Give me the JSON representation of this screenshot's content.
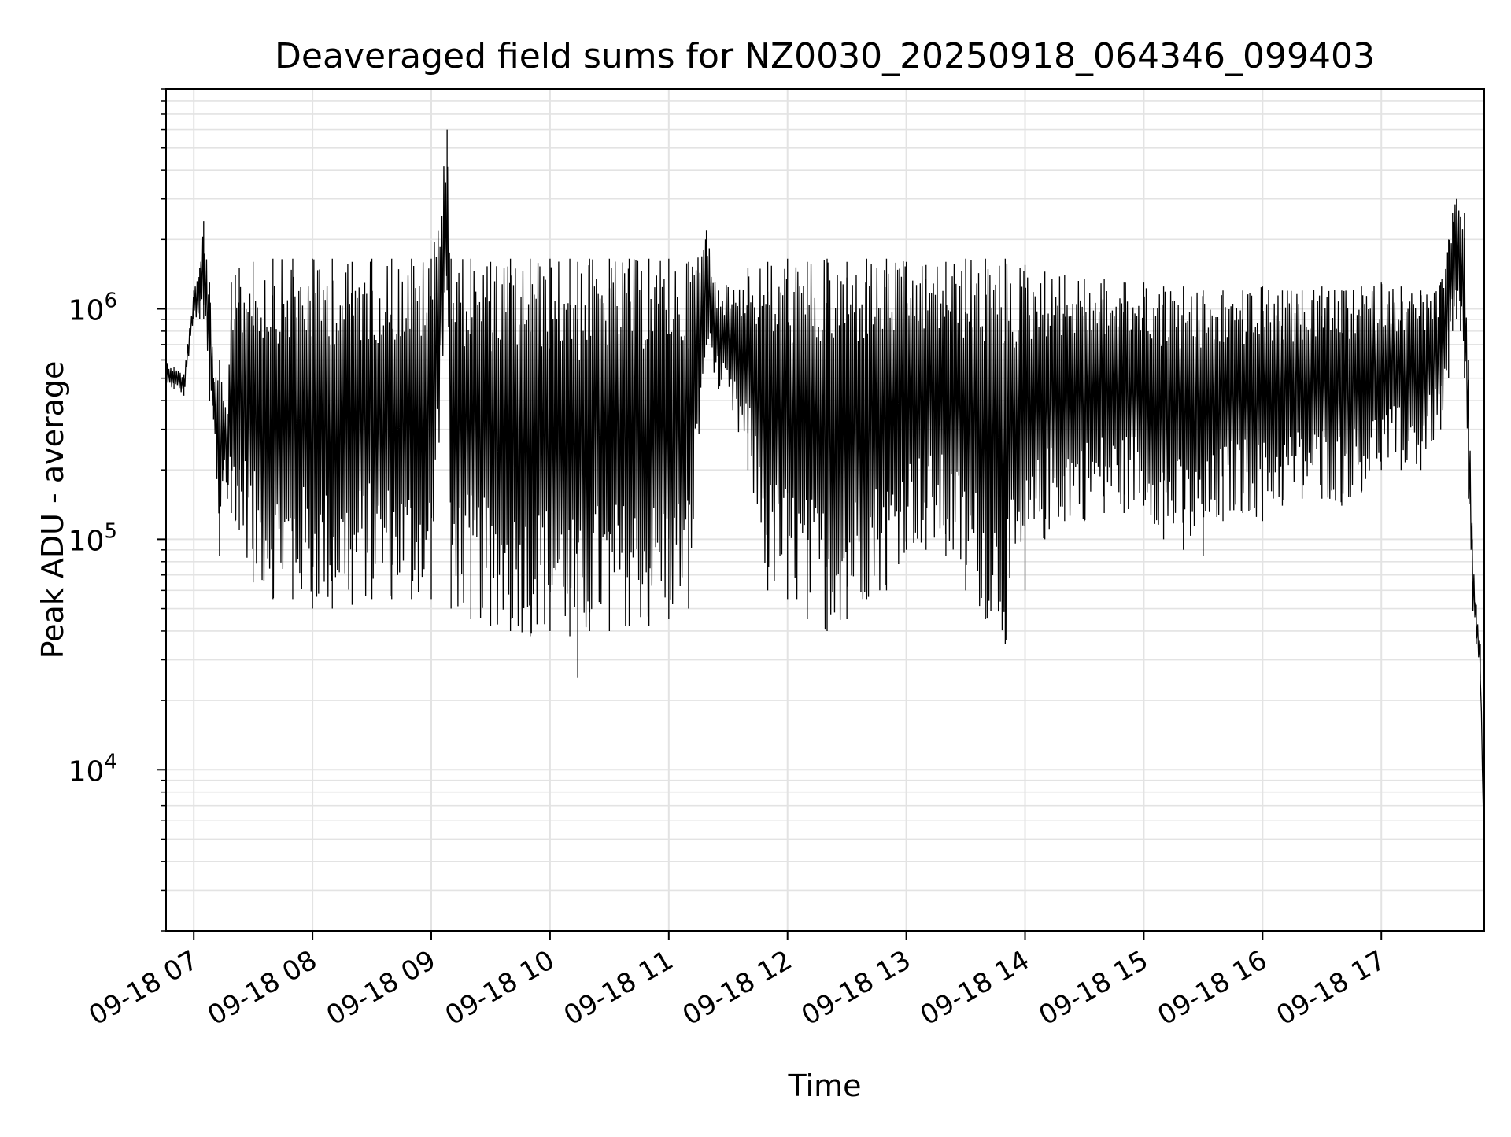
{
  "chart_data": {
    "type": "line",
    "title": "Deaveraged field sums for NZ0030_20250918_064346_099403",
    "xlabel": "Time",
    "ylabel": "Peak ADU - average",
    "y_scale": "log",
    "ylim": [
      2000,
      9000000
    ],
    "xlim": [
      "2025-09-18 06:46",
      "2025-09-18 17:52"
    ],
    "x_ticks": [
      {
        "value": "2025-09-18 07:00",
        "label": "09-18 07"
      },
      {
        "value": "2025-09-18 08:00",
        "label": "09-18 08"
      },
      {
        "value": "2025-09-18 09:00",
        "label": "09-18 09"
      },
      {
        "value": "2025-09-18 10:00",
        "label": "09-18 10"
      },
      {
        "value": "2025-09-18 11:00",
        "label": "09-18 11"
      },
      {
        "value": "2025-09-18 12:00",
        "label": "09-18 12"
      },
      {
        "value": "2025-09-18 13:00",
        "label": "09-18 13"
      },
      {
        "value": "2025-09-18 14:00",
        "label": "09-18 14"
      },
      {
        "value": "2025-09-18 15:00",
        "label": "09-18 15"
      },
      {
        "value": "2025-09-18 16:00",
        "label": "09-18 16"
      },
      {
        "value": "2025-09-18 17:00",
        "label": "09-18 17"
      }
    ],
    "y_ticks": [
      {
        "value": 10000,
        "base": "10",
        "exp": "4"
      },
      {
        "value": 100000,
        "base": "10",
        "exp": "5"
      },
      {
        "value": 1000000,
        "base": "10",
        "exp": "6"
      }
    ],
    "grid": true,
    "line_color": "#000000",
    "series": [
      {
        "x": [
          "2025-09-18 06:46",
          "2025-09-18 06:50",
          "2025-09-18 06:55",
          "2025-09-18 07:00",
          "2025-09-18 07:03",
          "2025-09-18 07:05",
          "2025-09-18 07:08",
          "2025-09-18 07:10",
          "2025-09-18 07:13",
          "2025-09-18 07:15",
          "2025-09-18 07:17",
          "2025-09-18 07:19",
          "2025-09-18 07:21",
          "2025-09-18 07:23",
          "2025-09-18 07:30",
          "2025-09-18 07:40",
          "2025-09-18 07:50",
          "2025-09-18 08:00",
          "2025-09-18 08:10",
          "2025-09-18 08:20",
          "2025-09-18 08:30",
          "2025-09-18 08:40",
          "2025-09-18 08:50",
          "2025-09-18 09:00",
          "2025-09-18 09:08",
          "2025-09-18 09:10",
          "2025-09-18 09:20",
          "2025-09-18 09:30",
          "2025-09-18 09:40",
          "2025-09-18 09:50",
          "2025-09-18 10:00",
          "2025-09-18 10:10",
          "2025-09-18 10:14",
          "2025-09-18 10:20",
          "2025-09-18 10:30",
          "2025-09-18 10:40",
          "2025-09-18 10:50",
          "2025-09-18 11:00",
          "2025-09-18 11:10",
          "2025-09-18 11:19",
          "2025-09-18 11:25",
          "2025-09-18 11:40",
          "2025-09-18 11:50",
          "2025-09-18 12:00",
          "2025-09-18 12:10",
          "2025-09-18 12:20",
          "2025-09-18 12:30",
          "2025-09-18 12:40",
          "2025-09-18 12:50",
          "2025-09-18 13:00",
          "2025-09-18 13:10",
          "2025-09-18 13:20",
          "2025-09-18 13:30",
          "2025-09-18 13:40",
          "2025-09-18 13:50",
          "2025-09-18 14:00",
          "2025-09-18 14:10",
          "2025-09-18 14:20",
          "2025-09-18 14:30",
          "2025-09-18 14:40",
          "2025-09-18 14:50",
          "2025-09-18 15:00",
          "2025-09-18 15:10",
          "2025-09-18 15:20",
          "2025-09-18 15:30",
          "2025-09-18 15:40",
          "2025-09-18 15:50",
          "2025-09-18 16:00",
          "2025-09-18 16:10",
          "2025-09-18 16:20",
          "2025-09-18 16:30",
          "2025-09-18 16:40",
          "2025-09-18 16:50",
          "2025-09-18 17:00",
          "2025-09-18 17:10",
          "2025-09-18 17:20",
          "2025-09-18 17:30",
          "2025-09-18 17:34",
          "2025-09-18 17:36",
          "2025-09-18 17:38",
          "2025-09-18 17:40",
          "2025-09-18 17:42",
          "2025-09-18 17:44",
          "2025-09-18 17:46",
          "2025-09-18 17:48",
          "2025-09-18 17:50",
          "2025-09-18 17:52"
        ],
        "upper": [
          600000,
          560000,
          520000,
          1200000,
          1500000,
          2400000,
          1300000,
          500000,
          600000,
          400000,
          350000,
          1300000,
          1400000,
          1500000,
          1600000,
          1650000,
          1650000,
          1650000,
          1650000,
          1600000,
          1650000,
          1650000,
          1650000,
          1650000,
          6000000,
          1650000,
          1650000,
          1600000,
          1650000,
          1650000,
          1650000,
          1650000,
          1600000,
          1650000,
          1650000,
          1650000,
          1650000,
          1650000,
          1600000,
          2200000,
          1200000,
          1500000,
          1600000,
          1650000,
          1600000,
          1650000,
          1600000,
          1650000,
          1650000,
          1600000,
          1550000,
          1600000,
          1650000,
          1650000,
          1650000,
          1550000,
          1450000,
          1400000,
          1350000,
          1350000,
          1300000,
          1300000,
          1250000,
          1250000,
          1200000,
          1200000,
          1200000,
          1250000,
          1200000,
          1200000,
          1250000,
          1200000,
          1250000,
          1300000,
          1250000,
          1200000,
          1300000,
          2000000,
          2600000,
          3000000,
          2500000,
          2600000,
          600000,
          100000,
          52000,
          35000,
          4000
        ],
        "lower": [
          450000,
          450000,
          420000,
          900000,
          900000,
          900000,
          400000,
          330000,
          85000,
          200000,
          150000,
          130000,
          120000,
          110000,
          65000,
          55000,
          55000,
          50000,
          50000,
          52000,
          55000,
          55000,
          55000,
          55000,
          1200000,
          50000,
          45000,
          42000,
          40000,
          38000,
          40000,
          38000,
          25000,
          40000,
          40000,
          42000,
          42000,
          45000,
          50000,
          700000,
          450000,
          200000,
          60000,
          55000,
          45000,
          40000,
          45000,
          55000,
          60000,
          90000,
          90000,
          85000,
          60000,
          45000,
          35000,
          60000,
          100000,
          120000,
          120000,
          130000,
          130000,
          140000,
          100000,
          90000,
          85000,
          120000,
          130000,
          120000,
          140000,
          150000,
          150000,
          140000,
          160000,
          200000,
          200000,
          200000,
          300000,
          500000,
          800000,
          900000,
          800000,
          500000,
          150000,
          50000,
          35000,
          25000,
          4000
        ]
      }
    ]
  }
}
